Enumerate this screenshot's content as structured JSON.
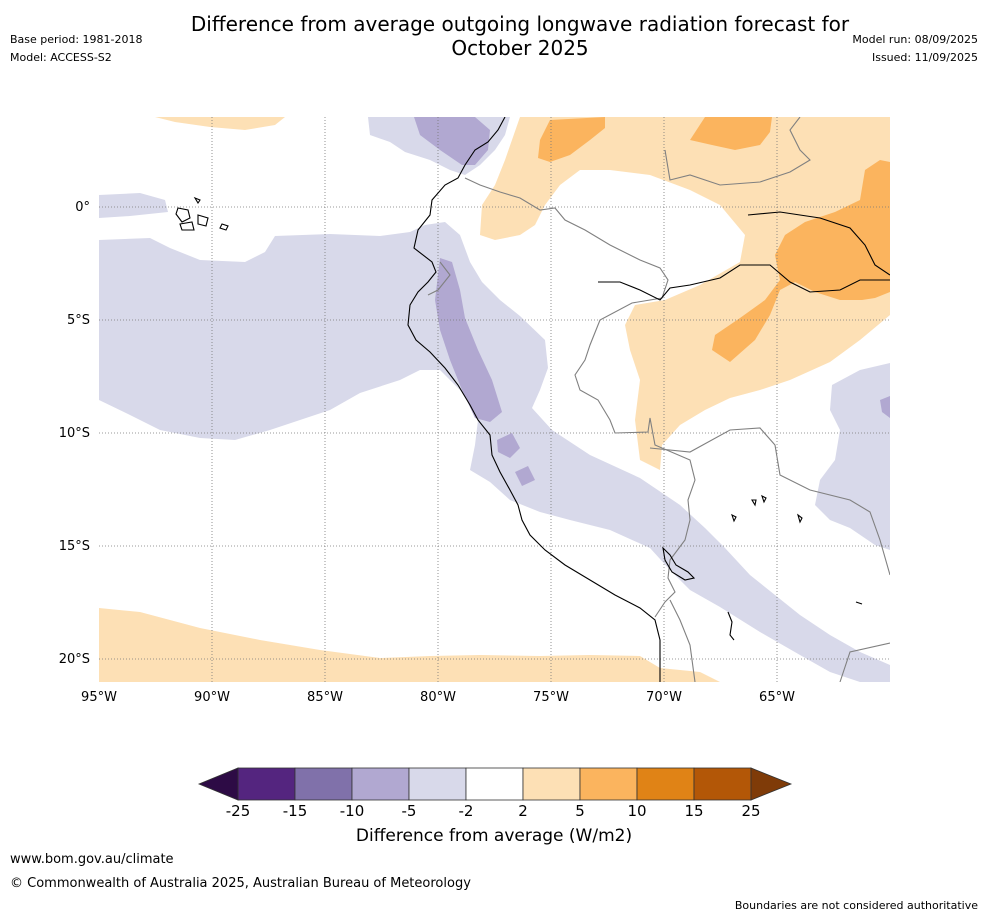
{
  "title_lines": [
    "Difference from average outgoing longwave radiation forecast for",
    "October 2025"
  ],
  "meta_left": {
    "base_period": "Base period: 1981-2018",
    "model": "Model: ACCESS-S2"
  },
  "meta_right": {
    "model_run": "Model run: 08/09/2025",
    "issued": "Issued: 11/09/2025"
  },
  "map": {
    "lon_range": [
      -95,
      -60
    ],
    "lat_range": [
      -21,
      4
    ],
    "x_ticks": [
      "95°W",
      "90°W",
      "85°W",
      "80°W",
      "75°W",
      "70°W",
      "65°W"
    ],
    "y_ticks": [
      "0°",
      "5°S",
      "10°S",
      "15°S",
      "20°S"
    ],
    "gridlines": true
  },
  "colorbar": {
    "tick_labels": [
      "-25",
      "-15",
      "-10",
      "-5",
      "-2",
      "2",
      "5",
      "10",
      "15",
      "25"
    ],
    "colors": {
      "below_min": "#2d0b45",
      "bins": [
        "#54257f",
        "#8071aa",
        "#b1a8d1",
        "#d8d9ea",
        "#ffffff",
        "#fde0b5",
        "#fbb45e",
        "#e08316",
        "#b35707"
      ],
      "above_max": "#7f3b08"
    },
    "label": "Difference from average (W/m2)"
  },
  "footer": {
    "url": "www.bom.gov.au/climate",
    "copyright": "© Commonwealth of Australia 2025, Australian Bureau of Meteorology",
    "disclaimer": "Boundaries are not considered authoritative"
  }
}
